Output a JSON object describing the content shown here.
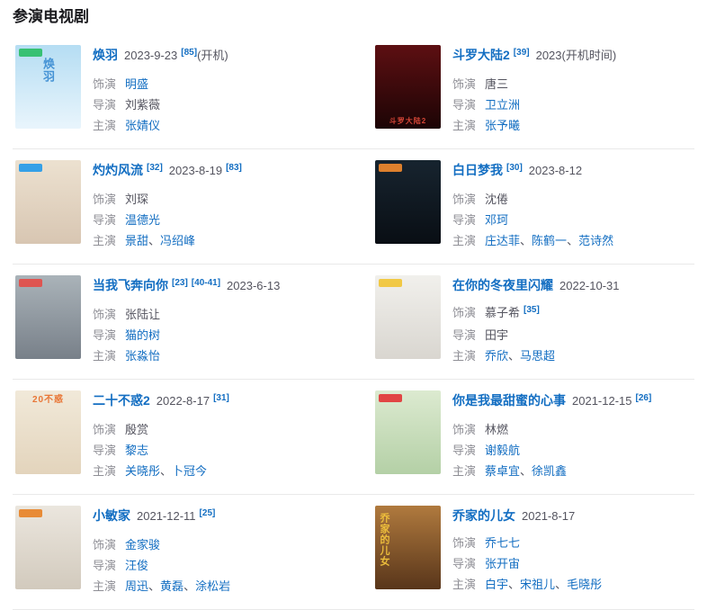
{
  "page": {
    "heading": "参演电视剧"
  },
  "labels": {
    "separator": "、"
  },
  "colors": {
    "link_blue": "#136ec2",
    "text_gray": "#54545f",
    "label_gray": "#8f8f96",
    "divider": "#e9e9e9"
  },
  "shows": [
    {
      "header": [
        {
          "t": "title",
          "text": "焕羽"
        },
        {
          "t": "date",
          "text": "2023-9-23"
        },
        {
          "t": "ref",
          "text": "[85]"
        },
        {
          "t": "plain",
          "text": "(开机)"
        }
      ],
      "rows": [
        {
          "label": "饰演",
          "items": [
            {
              "text": "明盛",
              "link": true
            }
          ],
          "refs": []
        },
        {
          "label": "导演",
          "items": [
            {
              "text": "刘紫薇",
              "link": false
            }
          ],
          "refs": []
        },
        {
          "label": "主演",
          "items": [
            {
              "text": "张婧仪",
              "link": true
            }
          ],
          "refs": []
        }
      ],
      "poster": {
        "bg1": "#b5ddf3",
        "bg2": "#e9f5fc",
        "badge": "#2fbf6b",
        "text": "焕羽",
        "text_color": "#3f8fd4",
        "text_pos": "center"
      }
    },
    {
      "header": [
        {
          "t": "title",
          "text": "斗罗大陆2"
        },
        {
          "t": "ref",
          "text": "[39]"
        },
        {
          "t": "date",
          "text": "2023(开机时间)"
        }
      ],
      "rows": [
        {
          "label": "饰演",
          "items": [
            {
              "text": "唐三",
              "link": false
            }
          ],
          "refs": []
        },
        {
          "label": "导演",
          "items": [
            {
              "text": "卫立洲",
              "link": true
            }
          ],
          "refs": []
        },
        {
          "label": "主演",
          "items": [
            {
              "text": "张予曦",
              "link": true
            }
          ],
          "refs": []
        }
      ],
      "poster": {
        "bg1": "#5d0f12",
        "bg2": "#1c0405",
        "badge": null,
        "text": "斗罗大陆2",
        "text_color": "#e04a3a",
        "text_pos": "bottom"
      }
    },
    {
      "header": [
        {
          "t": "title",
          "text": "灼灼风流"
        },
        {
          "t": "ref",
          "text": "[32]"
        },
        {
          "t": "date",
          "text": "2023-8-19"
        },
        {
          "t": "ref",
          "text": "[83]"
        }
      ],
      "rows": [
        {
          "label": "饰演",
          "items": [
            {
              "text": "刘琛",
              "link": false
            }
          ],
          "refs": []
        },
        {
          "label": "导演",
          "items": [
            {
              "text": "温德光",
              "link": true
            }
          ],
          "refs": []
        },
        {
          "label": "主演",
          "items": [
            {
              "text": "景甜",
              "link": true
            },
            {
              "text": "冯绍峰",
              "link": true
            }
          ],
          "refs": []
        }
      ],
      "poster": {
        "bg1": "#ece1d0",
        "bg2": "#d8c6b2",
        "badge": "#2b9ce8",
        "text": "",
        "text_color": "",
        "text_pos": ""
      }
    },
    {
      "header": [
        {
          "t": "title",
          "text": "白日梦我"
        },
        {
          "t": "ref",
          "text": "[30]"
        },
        {
          "t": "date",
          "text": "2023-8-12"
        }
      ],
      "rows": [
        {
          "label": "饰演",
          "items": [
            {
              "text": "沈倦",
              "link": false
            }
          ],
          "refs": []
        },
        {
          "label": "导演",
          "items": [
            {
              "text": "邓珂",
              "link": true
            }
          ],
          "refs": []
        },
        {
          "label": "主演",
          "items": [
            {
              "text": "庄达菲",
              "link": true
            },
            {
              "text": "陈鹤一",
              "link": true
            },
            {
              "text": "范诗然",
              "link": true
            }
          ],
          "refs": []
        }
      ],
      "poster": {
        "bg1": "#17242f",
        "bg2": "#090e14",
        "badge": "#e8862d",
        "text": "",
        "text_color": "",
        "text_pos": ""
      }
    },
    {
      "header": [
        {
          "t": "title",
          "text": "当我飞奔向你"
        },
        {
          "t": "ref",
          "text": "[23]"
        },
        {
          "t": "ref",
          "text": "[40-41]"
        },
        {
          "t": "date",
          "text": "2023-6-13"
        }
      ],
      "rows": [
        {
          "label": "饰演",
          "items": [
            {
              "text": "张陆让",
              "link": false
            }
          ],
          "refs": []
        },
        {
          "label": "导演",
          "items": [
            {
              "text": "猫的树",
              "link": true
            }
          ],
          "refs": []
        },
        {
          "label": "主演",
          "items": [
            {
              "text": "张淼怡",
              "link": true
            }
          ],
          "refs": []
        }
      ],
      "poster": {
        "bg1": "#aab3b9",
        "bg2": "#788089",
        "badge": "#e2504c",
        "text": "",
        "text_color": "",
        "text_pos": ""
      }
    },
    {
      "header": [
        {
          "t": "title",
          "text": "在你的冬夜里闪耀"
        },
        {
          "t": "date",
          "text": "2022-10-31"
        }
      ],
      "rows": [
        {
          "label": "饰演",
          "items": [
            {
              "text": "慕子希",
              "link": false
            }
          ],
          "refs": [
            "[35]"
          ]
        },
        {
          "label": "导演",
          "items": [
            {
              "text": "田宇",
              "link": false
            }
          ],
          "refs": []
        },
        {
          "label": "主演",
          "items": [
            {
              "text": "乔欣",
              "link": true
            },
            {
              "text": "马思超",
              "link": true
            }
          ],
          "refs": []
        }
      ],
      "poster": {
        "bg1": "#f1f0ec",
        "bg2": "#d9d6d0",
        "badge": "#f0c63c",
        "text": "",
        "text_color": "",
        "text_pos": ""
      }
    },
    {
      "header": [
        {
          "t": "title",
          "text": "二十不惑2"
        },
        {
          "t": "date",
          "text": "2022-8-17"
        },
        {
          "t": "ref",
          "text": "[31]"
        }
      ],
      "rows": [
        {
          "label": "饰演",
          "items": [
            {
              "text": "殷赏",
              "link": false
            }
          ],
          "refs": []
        },
        {
          "label": "导演",
          "items": [
            {
              "text": "黎志",
              "link": true
            }
          ],
          "refs": []
        },
        {
          "label": "主演",
          "items": [
            {
              "text": "关晓彤",
              "link": true
            },
            {
              "text": "卜冠今",
              "link": true
            }
          ],
          "refs": []
        }
      ],
      "poster": {
        "bg1": "#f1e9d9",
        "bg2": "#e3d4bc",
        "badge": null,
        "text": "20不惑",
        "text_color": "#e8702e",
        "text_pos": "top"
      }
    },
    {
      "header": [
        {
          "t": "title",
          "text": "你是我最甜蜜的心事"
        },
        {
          "t": "date",
          "text": "2021-12-15"
        },
        {
          "t": "ref",
          "text": "[26]"
        }
      ],
      "rows": [
        {
          "label": "饰演",
          "items": [
            {
              "text": "林燃",
              "link": false
            }
          ],
          "refs": []
        },
        {
          "label": "导演",
          "items": [
            {
              "text": "谢毅航",
              "link": true
            }
          ],
          "refs": []
        },
        {
          "label": "主演",
          "items": [
            {
              "text": "蔡卓宜",
              "link": true
            },
            {
              "text": "徐凯鑫",
              "link": true
            }
          ],
          "refs": []
        }
      ],
      "poster": {
        "bg1": "#dcead0",
        "bg2": "#b4d0a6",
        "badge": "#e23c3c",
        "text": "",
        "text_color": "",
        "text_pos": ""
      }
    },
    {
      "header": [
        {
          "t": "title",
          "text": "小敏家"
        },
        {
          "t": "date",
          "text": "2021-12-11"
        },
        {
          "t": "ref",
          "text": "[25]"
        }
      ],
      "rows": [
        {
          "label": "饰演",
          "items": [
            {
              "text": "金家骏",
              "link": true
            }
          ],
          "refs": []
        },
        {
          "label": "导演",
          "items": [
            {
              "text": "汪俊",
              "link": true
            }
          ],
          "refs": []
        },
        {
          "label": "主演",
          "items": [
            {
              "text": "周迅",
              "link": true
            },
            {
              "text": "黄磊",
              "link": true
            },
            {
              "text": "涂松岩",
              "link": true
            }
          ],
          "refs": []
        }
      ],
      "poster": {
        "bg1": "#ebe6de",
        "bg2": "#d2cabd",
        "badge": "#e8862d",
        "text": "",
        "text_color": "",
        "text_pos": ""
      }
    },
    {
      "header": [
        {
          "t": "title",
          "text": "乔家的儿女"
        },
        {
          "t": "date",
          "text": "2021-8-17"
        }
      ],
      "rows": [
        {
          "label": "饰演",
          "items": [
            {
              "text": "乔七七",
              "link": true
            }
          ],
          "refs": []
        },
        {
          "label": "导演",
          "items": [
            {
              "text": "张开宙",
              "link": true
            }
          ],
          "refs": []
        },
        {
          "label": "主演",
          "items": [
            {
              "text": "白宇",
              "link": true
            },
            {
              "text": "宋祖儿",
              "link": true
            },
            {
              "text": "毛晓彤",
              "link": true
            }
          ],
          "refs": []
        }
      ],
      "poster": {
        "bg1": "#b07a3e",
        "bg2": "#58351a",
        "badge": null,
        "text": "乔家的儿女",
        "text_color": "#f2c33c",
        "text_pos": "left"
      }
    }
  ]
}
